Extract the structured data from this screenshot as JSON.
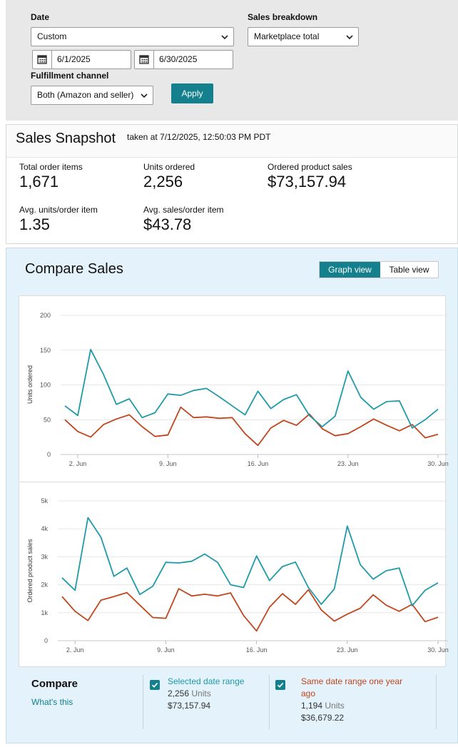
{
  "filters": {
    "date_label": "Date",
    "date_value": "Custom",
    "start_date": "6/1/2025",
    "end_date": "6/30/2025",
    "breakdown_label": "Sales breakdown",
    "breakdown_value": "Marketplace total",
    "fulfillment_label": "Fulfillment channel",
    "fulfillment_value": "Both (Amazon and seller)",
    "apply_label": "Apply"
  },
  "snapshot": {
    "title": "Sales Snapshot",
    "taken": "taken at 7/12/2025, 12:50:03 PM PDT",
    "metrics": [
      {
        "label": "Total order items",
        "value": "1,671"
      },
      {
        "label": "Units ordered",
        "value": "2,256"
      },
      {
        "label": "Ordered product sales",
        "value": "$73,157.94"
      },
      {
        "label": "Avg. units/order item",
        "value": "1.35"
      },
      {
        "label": "Avg. sales/order item",
        "value": "$43.78"
      }
    ]
  },
  "compare": {
    "title": "Compare Sales",
    "graph_view": "Graph view",
    "table_view": "Table view",
    "legend": {
      "title": "Compare",
      "whats_this": "What's this",
      "current": {
        "name": "Selected date range",
        "units_num": "2,256",
        "units_word": "Units",
        "sales": "$73,157.94"
      },
      "previous": {
        "name": "Same date range one year ago",
        "units_num": "1,194",
        "units_word": "Units",
        "sales": "$36,679.22"
      }
    }
  },
  "colors": {
    "current": "#1e9aa8",
    "previous": "#c1461d",
    "accent": "#14808e"
  },
  "chart_data": [
    {
      "type": "line",
      "ylabel": "Units ordered",
      "ylim": [
        0,
        200
      ],
      "yticks": [
        "0",
        "50",
        "100",
        "150",
        "200"
      ],
      "ytick_values": [
        0,
        50,
        100,
        150,
        200
      ],
      "x": [
        1,
        2,
        3,
        4,
        5,
        6,
        7,
        8,
        9,
        10,
        11,
        12,
        13,
        14,
        15,
        16,
        17,
        18,
        19,
        20,
        21,
        22,
        23,
        24,
        25,
        26,
        27,
        28,
        29,
        30
      ],
      "xticks": [
        {
          "day": 2,
          "label": "2. Jun"
        },
        {
          "day": 9,
          "label": "9. Jun"
        },
        {
          "day": 16,
          "label": "16. Jun"
        },
        {
          "day": 23,
          "label": "23. Jun"
        },
        {
          "day": 30,
          "label": "30. Jun"
        }
      ],
      "grid": true,
      "series": [
        {
          "name": "Selected date range",
          "values": [
            70,
            56,
            151,
            115,
            72,
            80,
            53,
            60,
            87,
            85,
            92,
            95,
            83,
            70,
            57,
            91,
            66,
            79,
            86,
            56,
            40,
            55,
            120,
            82,
            65,
            76,
            77,
            38,
            50,
            65
          ]
        },
        {
          "name": "Same date range one year ago",
          "values": [
            50,
            33,
            25,
            43,
            51,
            57,
            40,
            26,
            28,
            68,
            53,
            54,
            52,
            53,
            30,
            13,
            38,
            49,
            42,
            58,
            37,
            27,
            30,
            40,
            51,
            42,
            34,
            43,
            24,
            29
          ]
        }
      ]
    },
    {
      "type": "line",
      "ylabel": "Ordered product sales",
      "ylim": [
        0,
        5000
      ],
      "yticks": [
        "0",
        "1k",
        "2k",
        "3k",
        "4k",
        "5k"
      ],
      "ytick_values": [
        0,
        1000,
        2000,
        3000,
        4000,
        5000
      ],
      "x": [
        1,
        2,
        3,
        4,
        5,
        6,
        7,
        8,
        9,
        10,
        11,
        12,
        13,
        14,
        15,
        16,
        17,
        18,
        19,
        20,
        21,
        22,
        23,
        24,
        25,
        26,
        27,
        28,
        29,
        30
      ],
      "xticks": [
        {
          "day": 2,
          "label": "2. Jun"
        },
        {
          "day": 9,
          "label": "9. Jun"
        },
        {
          "day": 16,
          "label": "16. Jun"
        },
        {
          "day": 23,
          "label": "23. Jun"
        },
        {
          "day": 30,
          "label": "30. Jun"
        }
      ],
      "grid": true,
      "series": [
        {
          "name": "Selected date range",
          "values": [
            2250,
            1800,
            4400,
            3700,
            2300,
            2600,
            1650,
            1950,
            2800,
            2780,
            2840,
            3100,
            2800,
            2000,
            1900,
            3030,
            2150,
            2650,
            2810,
            1900,
            1300,
            1850,
            4100,
            2720,
            2200,
            2500,
            2600,
            1250,
            1800,
            2070
          ]
        },
        {
          "name": "Same date range one year ago",
          "values": [
            1580,
            1050,
            720,
            1450,
            1580,
            1720,
            1270,
            830,
            800,
            1860,
            1600,
            1660,
            1600,
            1710,
            900,
            350,
            1200,
            1680,
            1300,
            1820,
            1100,
            700,
            950,
            1160,
            1640,
            1270,
            1050,
            1300,
            680,
            840
          ]
        }
      ]
    }
  ]
}
